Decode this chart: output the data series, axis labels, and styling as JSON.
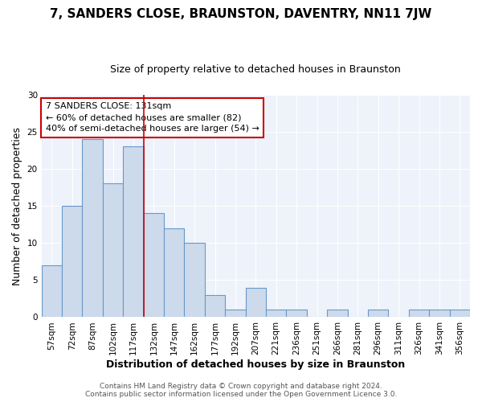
{
  "title": "7, SANDERS CLOSE, BRAUNSTON, DAVENTRY, NN11 7JW",
  "subtitle": "Size of property relative to detached houses in Braunston",
  "xlabel": "Distribution of detached houses by size in Braunston",
  "ylabel": "Number of detached properties",
  "categories": [
    "57sqm",
    "72sqm",
    "87sqm",
    "102sqm",
    "117sqm",
    "132sqm",
    "147sqm",
    "162sqm",
    "177sqm",
    "192sqm",
    "207sqm",
    "221sqm",
    "236sqm",
    "251sqm",
    "266sqm",
    "281sqm",
    "296sqm",
    "311sqm",
    "326sqm",
    "341sqm",
    "356sqm"
  ],
  "values": [
    7,
    15,
    24,
    18,
    23,
    14,
    12,
    10,
    3,
    1,
    4,
    1,
    1,
    0,
    1,
    0,
    1,
    0,
    1,
    1,
    1
  ],
  "bar_color": "#ccdaeb",
  "bar_edge_color": "#6898c8",
  "highlight_line_color": "#cc0000",
  "annotation_line1": "7 SANDERS CLOSE: 131sqm",
  "annotation_line2": "← 60% of detached houses are smaller (82)",
  "annotation_line3": "40% of semi-detached houses are larger (54) →",
  "annotation_box_color": "#ffffff",
  "annotation_box_edge_color": "#cc0000",
  "ylim": [
    0,
    30
  ],
  "yticks": [
    0,
    5,
    10,
    15,
    20,
    25,
    30
  ],
  "bg_color": "#ffffff",
  "plot_bg_color": "#eef2fa",
  "grid_color": "#ffffff",
  "footer_text": "Contains HM Land Registry data © Crown copyright and database right 2024.\nContains public sector information licensed under the Open Government Licence 3.0.",
  "title_fontsize": 11,
  "subtitle_fontsize": 9,
  "axis_label_fontsize": 9,
  "tick_fontsize": 7.5,
  "footer_fontsize": 6.5
}
